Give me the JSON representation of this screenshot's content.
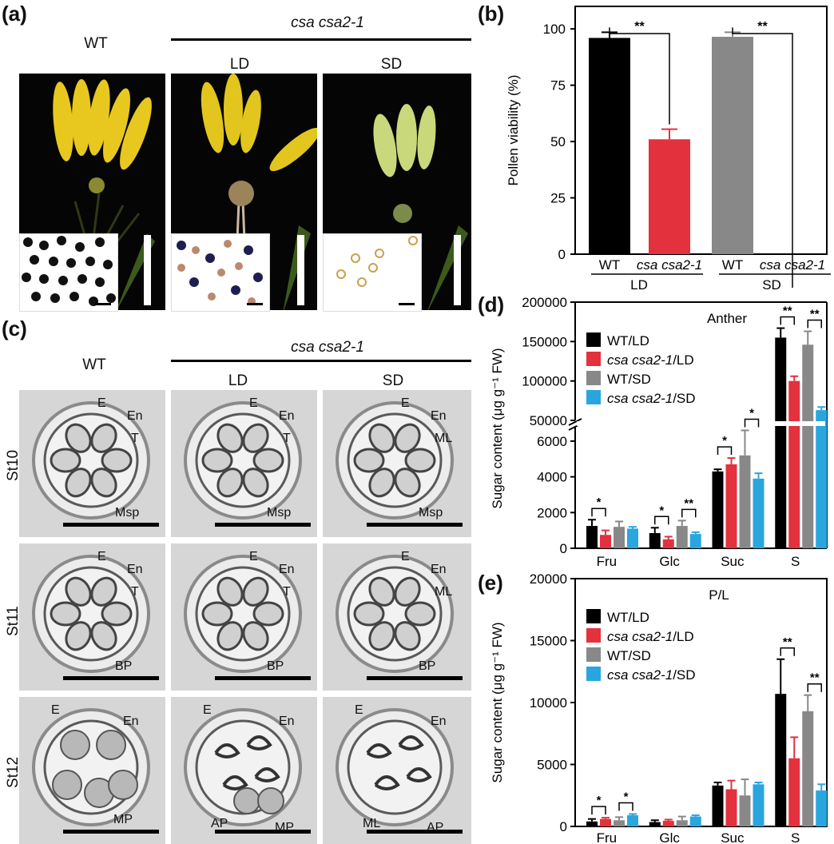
{
  "panel_a": {
    "label": "(a)",
    "wt": "WT",
    "mutant": "csa csa2-1",
    "ld": "LD",
    "sd": "SD"
  },
  "panel_c": {
    "label": "(c)",
    "wt": "WT",
    "mutant": "csa csa2-1",
    "ld": "LD",
    "sd": "SD",
    "rows": [
      "St10",
      "St11",
      "St12"
    ],
    "annotations": {
      "st10": [
        [
          "E",
          "En",
          "T",
          "Msp"
        ],
        [
          "E",
          "En",
          "T",
          "Msp"
        ],
        [
          "E",
          "En",
          "ML",
          "Msp"
        ]
      ],
      "st11": [
        [
          "E",
          "En",
          "T",
          "BP"
        ],
        [
          "E",
          "En",
          "T",
          "BP"
        ],
        [
          "E",
          "En",
          "ML",
          "BP"
        ]
      ],
      "st12": [
        [
          "E",
          "En",
          "MP"
        ],
        [
          "E",
          "En",
          "AP",
          "MP"
        ],
        [
          "E",
          "En",
          "ML",
          "AP"
        ]
      ]
    }
  },
  "chart_data": [
    {
      "panel": "(b)",
      "type": "bar",
      "ylabel": "Pollen viability (%)",
      "ylim": [
        0,
        110
      ],
      "yticks": [
        0,
        25,
        50,
        75,
        100
      ],
      "categories": [
        "WT",
        "csa csa2-1",
        "WT",
        "csa csa2-1"
      ],
      "groups": [
        "LD",
        "SD"
      ],
      "values": [
        96,
        51,
        96.5,
        0
      ],
      "errors": [
        2.5,
        4.5,
        2,
        0
      ],
      "colors": [
        "#000000",
        "#e3313d",
        "#888888",
        "#888888"
      ],
      "significance": [
        {
          "pair": [
            0,
            1
          ],
          "label": "**"
        },
        {
          "pair": [
            2,
            3
          ],
          "label": "**"
        }
      ]
    },
    {
      "panel": "(d)",
      "type": "bar",
      "title": "Anther",
      "ylabel": "Sugar content (μg g⁻¹ FW)",
      "categories": [
        "Fru",
        "Glc",
        "Suc",
        "S"
      ],
      "axis_break": true,
      "lower_yticks": [
        0,
        2000,
        4000,
        6000
      ],
      "upper_yticks": [
        50000,
        100000,
        150000,
        200000
      ],
      "series": [
        {
          "name": "WT/LD",
          "color": "#000000",
          "values": [
            1250,
            850,
            4300,
            155000
          ],
          "errors": [
            350,
            300,
            120,
            12000
          ]
        },
        {
          "name": "csa csa2-1/LD",
          "color": "#e3313d",
          "values": [
            750,
            500,
            4700,
            100000
          ],
          "errors": [
            250,
            150,
            350,
            6000
          ]
        },
        {
          "name": "WT/SD",
          "color": "#888888",
          "values": [
            1200,
            1250,
            5200,
            146000
          ],
          "errors": [
            300,
            300,
            1400,
            17000
          ]
        },
        {
          "name": "csa csa2-1/SD",
          "color": "#2aa6de",
          "values": [
            1100,
            800,
            3900,
            63000
          ],
          "errors": [
            100,
            100,
            300,
            4000
          ]
        }
      ],
      "significance": [
        {
          "category": "Fru",
          "pair": [
            "WT/LD",
            "csa csa2-1/LD"
          ],
          "label": "*"
        },
        {
          "category": "Glc",
          "pair": [
            "WT/LD",
            "csa csa2-1/LD"
          ],
          "label": "*"
        },
        {
          "category": "Glc",
          "pair": [
            "WT/SD",
            "csa csa2-1/SD"
          ],
          "label": "**"
        },
        {
          "category": "Suc",
          "pair": [
            "WT/LD",
            "csa csa2-1/LD"
          ],
          "label": "*"
        },
        {
          "category": "Suc",
          "pair": [
            "WT/SD",
            "csa csa2-1/SD"
          ],
          "label": "*"
        },
        {
          "category": "S",
          "pair": [
            "WT/LD",
            "csa csa2-1/LD"
          ],
          "label": "**"
        },
        {
          "category": "S",
          "pair": [
            "WT/SD",
            "csa csa2-1/SD"
          ],
          "label": "**"
        }
      ]
    },
    {
      "panel": "(e)",
      "type": "bar",
      "title": "P/L",
      "ylabel": "Sugar content (μg g⁻¹ FW)",
      "ylim": [
        0,
        20000
      ],
      "yticks": [
        0,
        5000,
        10000,
        15000,
        20000
      ],
      "categories": [
        "Fru",
        "Glc",
        "Suc",
        "S"
      ],
      "series": [
        {
          "name": "WT/LD",
          "color": "#000000",
          "values": [
            400,
            350,
            3300,
            10700
          ],
          "errors": [
            200,
            150,
            250,
            2800
          ]
        },
        {
          "name": "csa csa2-1/LD",
          "color": "#e3313d",
          "values": [
            600,
            450,
            3000,
            5500
          ],
          "errors": [
            100,
            100,
            700,
            1700
          ]
        },
        {
          "name": "WT/SD",
          "color": "#888888",
          "values": [
            500,
            500,
            2500,
            9300
          ],
          "errors": [
            250,
            300,
            1300,
            1300
          ]
        },
        {
          "name": "csa csa2-1/SD",
          "color": "#2aa6de",
          "values": [
            900,
            800,
            3400,
            2900
          ],
          "errors": [
            100,
            100,
            150,
            500
          ]
        }
      ],
      "significance": [
        {
          "category": "Fru",
          "pair": [
            "WT/LD",
            "csa csa2-1/LD"
          ],
          "label": "*"
        },
        {
          "category": "Fru",
          "pair": [
            "WT/SD",
            "csa csa2-1/SD"
          ],
          "label": "*"
        },
        {
          "category": "S",
          "pair": [
            "WT/LD",
            "csa csa2-1/LD"
          ],
          "label": "**"
        },
        {
          "category": "S",
          "pair": [
            "WT/SD",
            "csa csa2-1/SD"
          ],
          "label": "**"
        }
      ]
    }
  ]
}
